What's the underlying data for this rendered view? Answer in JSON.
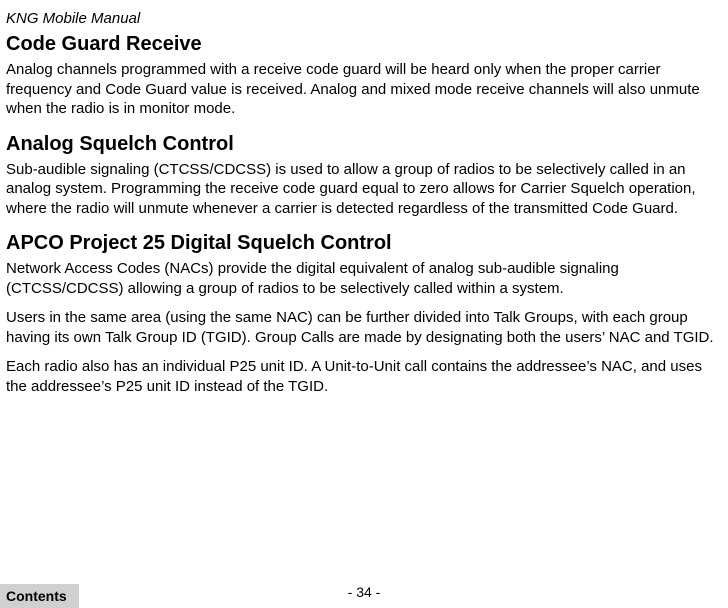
{
  "header": {
    "doc_title": "KNG Mobile Manual"
  },
  "sections": {
    "code_guard_receive": {
      "heading": "Code Guard Receive",
      "body": "Analog channels programmed with a receive code guard will be heard only when the proper carrier frequency and Code Guard value is received. Analog and mixed mode receive channels will also unmute when the radio is in monitor mode."
    },
    "analog_squelch": {
      "heading": "Analog Squelch Control",
      "body": "Sub-audible signaling (CTCSS/CDCSS) is used to allow a group of radios to be selectively called in an analog system. Programming the receive code guard equal to zero allows for Carrier Squelch operation, where the radio will unmute whenever a carrier is detected regardless of the transmitted Code Guard."
    },
    "apco": {
      "heading": "APCO Project 25 Digital Squelch Control",
      "p1": "Network Access Codes (NACs) provide the digital equivalent of analog sub-audible signaling (CTCSS/CDCSS) allowing a group of radios to be selectively called within a system.",
      "p2": "Users in the same area (using the same NAC) can be further divided into Talk Groups, with each group having its own Talk Group ID (TGID). Group Calls are made by designating both the users’ NAC and TGID.",
      "p3": "Each radio also has an individual P25 unit ID. A Unit-to-Unit call contains the addressee’s NAC, and uses the addressee’s P25 unit ID instead of the TGID."
    }
  },
  "footer": {
    "page_number": "- 34 -",
    "contents_label": "Contents"
  }
}
